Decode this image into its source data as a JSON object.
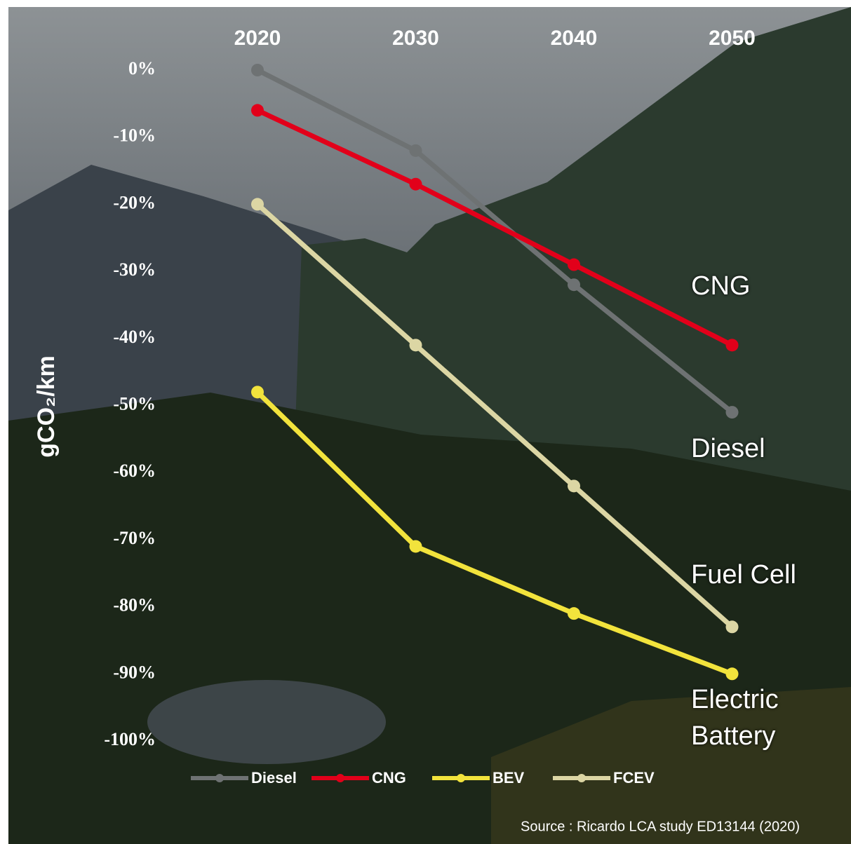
{
  "chart_data": {
    "type": "line",
    "y_axis_label": "gCO₂/km",
    "categories": [
      "2020",
      "2030",
      "2040",
      "2050"
    ],
    "series": [
      {
        "name": "Diesel",
        "color": "#6e7273",
        "values": [
          0,
          -12,
          -32,
          -51
        ]
      },
      {
        "name": "CNG",
        "color": "#e2001a",
        "values": [
          -6,
          -17,
          -29,
          -41
        ]
      },
      {
        "name": "BEV",
        "color": "#f2e33c",
        "values": [
          -48,
          -71,
          -81,
          -90
        ]
      },
      {
        "name": "FCEV",
        "color": "#dcd6a4",
        "values": [
          -20,
          -41,
          -62,
          -83
        ]
      }
    ],
    "ylim": [
      -100,
      0
    ],
    "yticks": [
      {
        "value": 0,
        "label": "0%"
      },
      {
        "value": -10,
        "label": "-10%"
      },
      {
        "value": -20,
        "label": "-20%"
      },
      {
        "value": -30,
        "label": "-30%"
      },
      {
        "value": -40,
        "label": "-40%"
      },
      {
        "value": -50,
        "label": "-50%"
      },
      {
        "value": -60,
        "label": "-60%"
      },
      {
        "value": -70,
        "label": "-70%"
      },
      {
        "value": -80,
        "label": "-80%"
      },
      {
        "value": -90,
        "label": "-90%"
      },
      {
        "value": -100,
        "label": "-100%"
      }
    ],
    "annotations": [
      "CNG",
      "Diesel",
      "Fuel Cell",
      "Electric Battery"
    ],
    "source": "Source : Ricardo LCA study ED13144 (2020)",
    "grid": false
  }
}
